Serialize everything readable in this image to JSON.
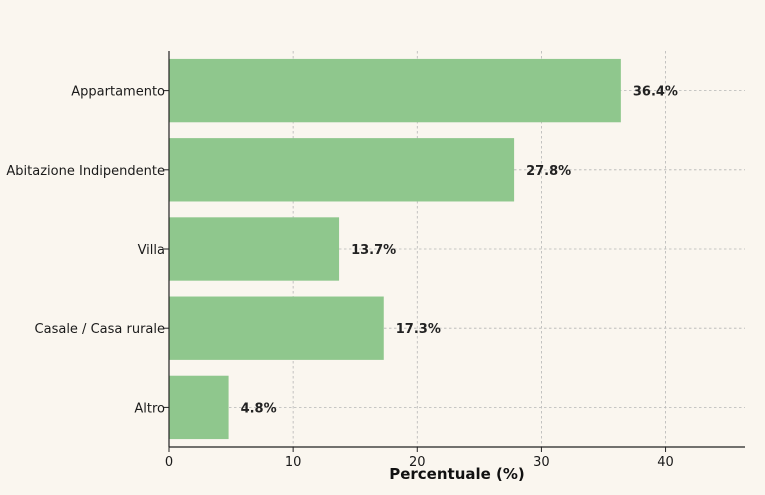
{
  "chart_data": {
    "type": "bar",
    "orientation": "horizontal",
    "categories": [
      "Appartamento",
      "Abitazione Indipendente",
      "Villa",
      "Casale / Casa rurale",
      "Altro"
    ],
    "values": [
      36.4,
      27.8,
      13.7,
      17.3,
      4.8
    ],
    "value_labels": [
      "36.4%",
      "27.8%",
      "13.7%",
      "17.3%",
      "4.8%"
    ],
    "xlabel": "Percentuale (%)",
    "ylabel": "",
    "xlim": [
      0,
      46.4
    ],
    "xticks": [
      0,
      10,
      20,
      30,
      40
    ],
    "grid": true,
    "bar_color": "#8fc78d",
    "background": "#faf6ef"
  }
}
